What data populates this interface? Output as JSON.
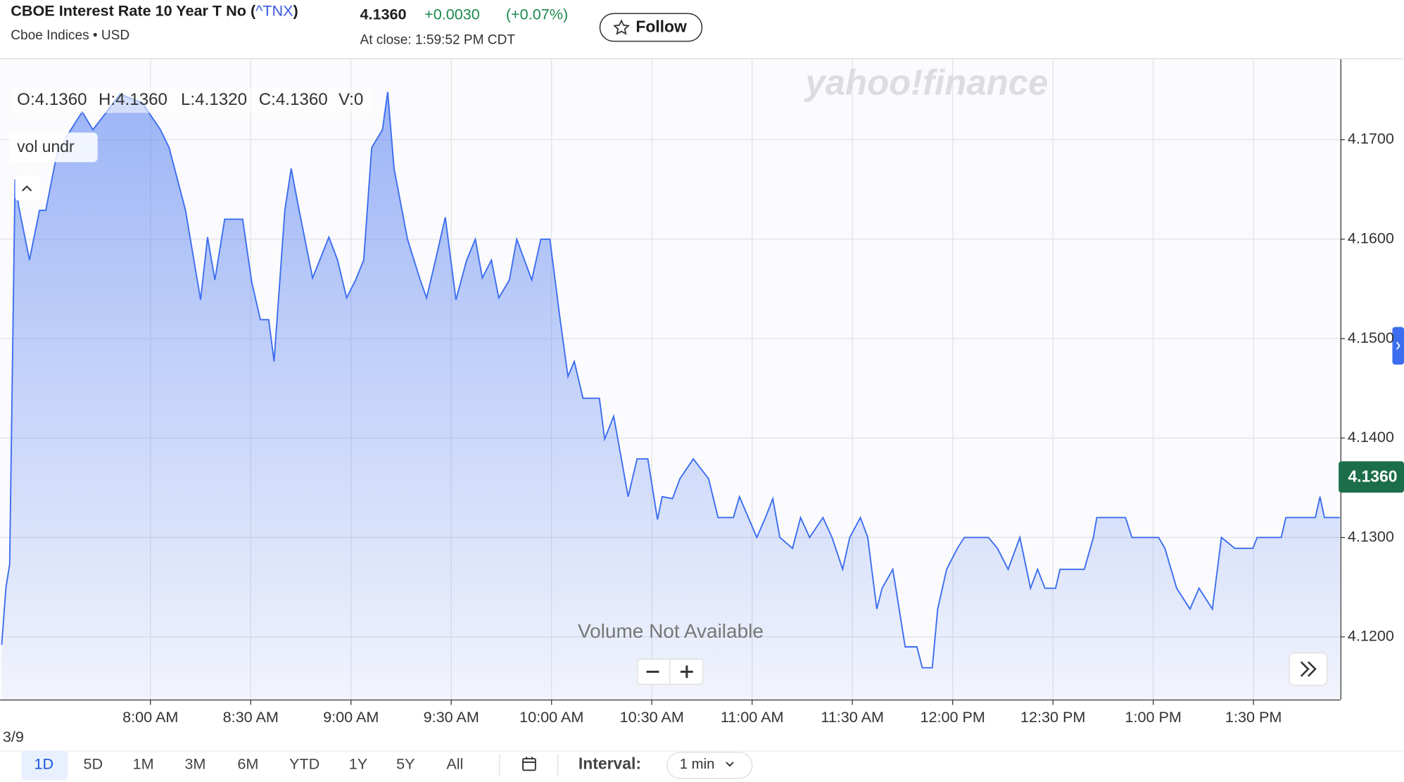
{
  "header": {
    "title_pre": "CBOE Interest Rate 10 Year T No (",
    "symbol": "^TNX",
    "title_post": ")",
    "exchange": "Cboe Indices • USD",
    "price": "4.1360",
    "change": "+0.0030",
    "change_pct": "(+0.07%)",
    "close_time": "At close: 1:59:52 PM CDT",
    "follow": "Follow"
  },
  "ohlc": [
    "O:4.1360",
    "H:4.1360",
    "L:4.1320",
    "C:4.1360",
    "V:0"
  ],
  "indicator": "vol undr",
  "watermark": "yahoo!finance",
  "volume_note": "Volume Not Available",
  "price_tag": "4.1360",
  "date_label": "3/9",
  "ranges": [
    "1D",
    "5D",
    "1M",
    "3M",
    "6M",
    "YTD",
    "1Y",
    "5Y",
    "All"
  ],
  "interval_label": "Interval:",
  "interval": "1 min",
  "chart_data": {
    "type": "area",
    "color": "#3d6ef0",
    "x": [
      435.5,
      436.8,
      437.9,
      439.5,
      440.6,
      443.8,
      446.8,
      448.7,
      452.1,
      456.2,
      459.6,
      462.8,
      466.9,
      470.9,
      477.6,
      483.0,
      485.6,
      490.5,
      495.0,
      497.1,
      499.3,
      502.2,
      507.6,
      510.3,
      512.9,
      515.4,
      517.0,
      520.2,
      522.1,
      524.5,
      528.5,
      533.4,
      536.0,
      538.7,
      541.4,
      543.8,
      546.2,
      549.4,
      551.0,
      552.9,
      556.9,
      560.7,
      562.6,
      565.3,
      568.2,
      571.4,
      574.6,
      577.2,
      579.3,
      582.0,
      584.2,
      587.4,
      589.6,
      594.1,
      596.8,
      599.5,
      602.5,
      604.9,
      606.8,
      609.4,
      614.3,
      615.9,
      618.6,
      622.9,
      625.6,
      628.8,
      631.7,
      633.1,
      636.2,
      638.4,
      642.4,
      647.0,
      649.8,
      654.4,
      656.2,
      661.4,
      664.0,
      666.2,
      668.3,
      672.1,
      674.5,
      677.2,
      681.2,
      683.9,
      687.1,
      689.2,
      692.4,
      694.6,
      697.3,
      698.9,
      702.1,
      705.8,
      709.3,
      710.9,
      713.9,
      715.5,
      718.2,
      721.4,
      723.5,
      728.1,
      730.7,
      733.4,
      736.6,
      740.1,
      743.3,
      745.4,
      747.6,
      750.8,
      752.1,
      754.0,
      759.4,
      762.1,
      763.1,
      771.7,
      773.6,
      781.6,
      783.5,
      787.0,
      791.0,
      793.7,
      797.7,
      800.4,
      804.4,
      809.8,
      811.1,
      818.3,
      819.7,
      828.5,
      829.9,
      831.2,
      835.8
    ],
    "values": [
      4.1192,
      4.125,
      4.1273,
      4.166,
      4.1633,
      4.1579,
      4.1629,
      4.1629,
      4.1687,
      4.171,
      4.1728,
      4.171,
      4.1728,
      4.1746,
      4.1737,
      4.171,
      4.1692,
      4.1629,
      4.1539,
      4.1602,
      4.1559,
      4.162,
      4.162,
      4.1557,
      4.1519,
      4.1519,
      4.1477,
      4.1629,
      4.1671,
      4.1629,
      4.1561,
      4.1602,
      4.1579,
      4.1541,
      4.1559,
      4.1579,
      4.1692,
      4.171,
      4.1748,
      4.1671,
      4.16,
      4.1559,
      4.1541,
      4.1579,
      4.1622,
      4.1539,
      4.1579,
      4.16,
      4.1561,
      4.1579,
      4.1541,
      4.1559,
      4.16,
      4.1559,
      4.16,
      4.16,
      4.1521,
      4.1462,
      4.1477,
      4.144,
      4.144,
      4.1399,
      4.1422,
      4.1341,
      4.1379,
      4.1379,
      4.1318,
      4.1341,
      4.1339,
      4.1359,
      4.1379,
      4.1359,
      4.132,
      4.132,
      4.1341,
      4.13,
      4.132,
      4.1339,
      4.13,
      4.1289,
      4.132,
      4.13,
      4.132,
      4.13,
      4.1268,
      4.13,
      4.132,
      4.13,
      4.1228,
      4.1249,
      4.1268,
      4.119,
      4.119,
      4.1169,
      4.1169,
      4.1228,
      4.1268,
      4.1289,
      4.13,
      4.13,
      4.13,
      4.1289,
      4.1268,
      4.13,
      4.1249,
      4.1268,
      4.1249,
      4.1249,
      4.1268,
      4.1268,
      4.1268,
      4.13,
      4.132,
      4.132,
      4.13,
      4.13,
      4.1289,
      4.1249,
      4.1228,
      4.1249,
      4.1228,
      4.13,
      4.1289,
      4.1289,
      4.13,
      4.13,
      4.132,
      4.132,
      4.1341,
      4.132,
      4.132
    ],
    "xlim": [
      435,
      836
    ],
    "xticks": [
      {
        "value": 480,
        "label": "8:00 AM"
      },
      {
        "value": 510,
        "label": "8:30 AM"
      },
      {
        "value": 540,
        "label": "9:00 AM"
      },
      {
        "value": 570,
        "label": "9:30 AM"
      },
      {
        "value": 600,
        "label": "10:00 AM"
      },
      {
        "value": 630,
        "label": "10:30 AM"
      },
      {
        "value": 660,
        "label": "11:00 AM"
      },
      {
        "value": 690,
        "label": "11:30 AM"
      },
      {
        "value": 720,
        "label": "12:00 PM"
      },
      {
        "value": 750,
        "label": "12:30 PM"
      },
      {
        "value": 780,
        "label": "1:00 PM"
      },
      {
        "value": 810,
        "label": "1:30 PM"
      }
    ],
    "ylim": [
      4.1137,
      4.1781
    ],
    "yticks": [
      {
        "value": 4.12,
        "label": "4.1200"
      },
      {
        "value": 4.13,
        "label": "4.1300"
      },
      {
        "value": 4.14,
        "label": "4.1400"
      },
      {
        "value": 4.15,
        "label": "4.1500"
      },
      {
        "value": 4.16,
        "label": "4.1600"
      },
      {
        "value": 4.17,
        "label": "4.1700"
      }
    ],
    "grid": true
  }
}
